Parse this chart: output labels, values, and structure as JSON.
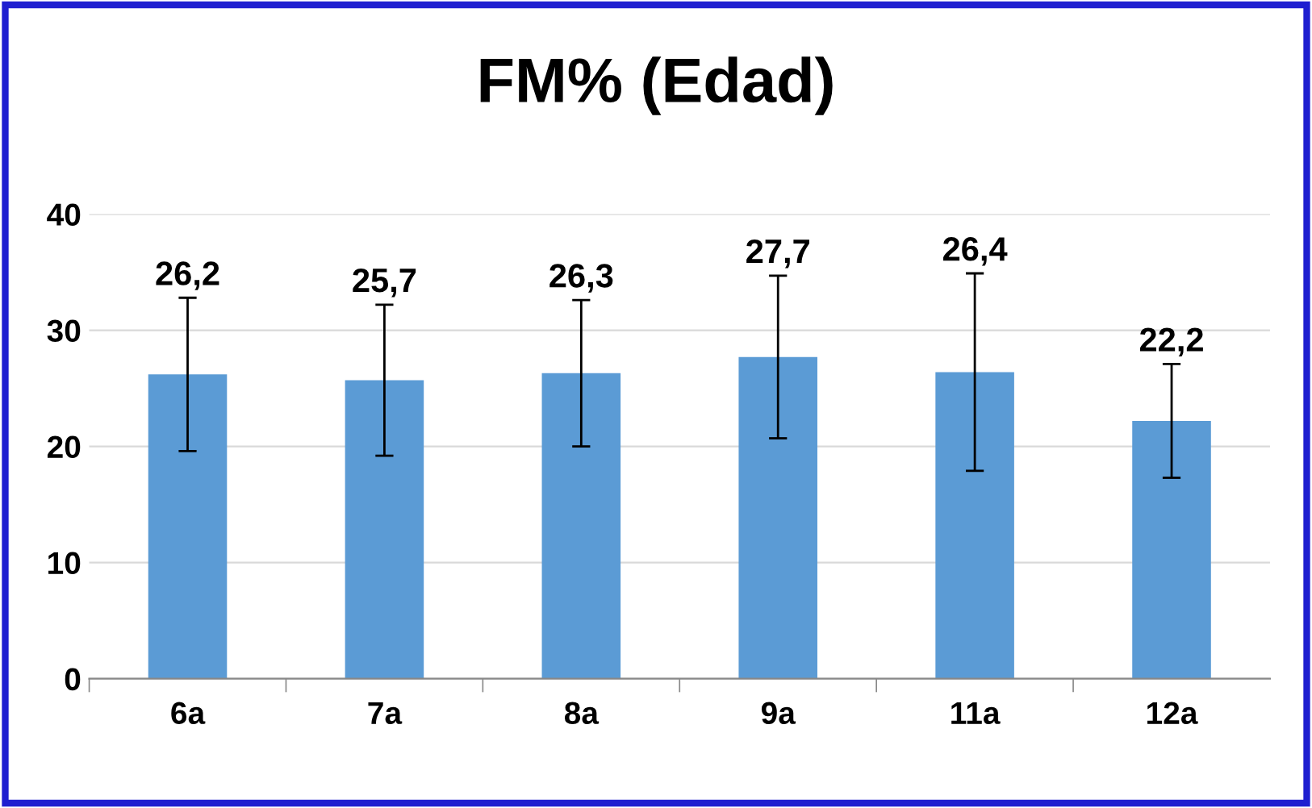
{
  "chart_data": {
    "type": "bar",
    "title": "FM% (Edad)",
    "categories": [
      "6a",
      "7a",
      "8a",
      "9a",
      "11a",
      "12a"
    ],
    "values": [
      26.2,
      25.7,
      26.3,
      27.7,
      26.4,
      22.2
    ],
    "errors": [
      6.6,
      6.5,
      6.3,
      7.0,
      8.5,
      4.9
    ],
    "color": "#5b9bd5",
    "value_labels": [
      "26,2",
      "25,7",
      "26,3",
      "27,7",
      "26,4",
      "22,2"
    ],
    "ylim": [
      0,
      40
    ],
    "yticks": [
      0,
      10,
      20,
      30,
      40
    ],
    "grid": "y"
  }
}
